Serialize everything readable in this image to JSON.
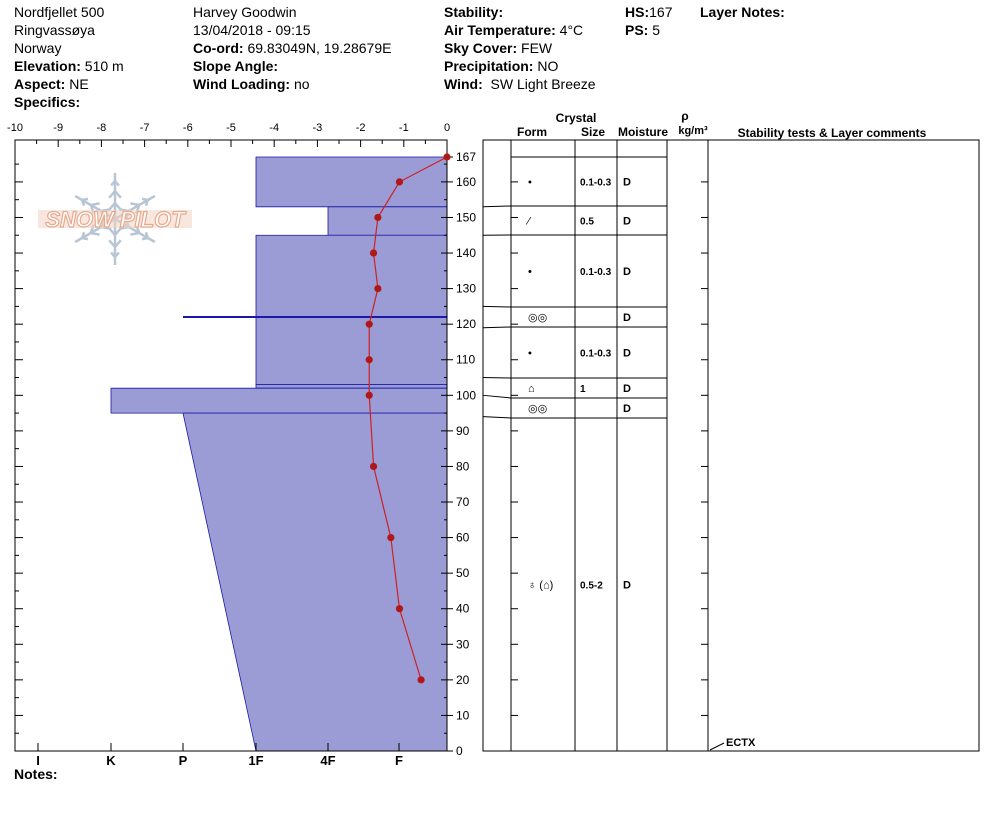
{
  "header": {
    "location": "Nordfjellet 500",
    "area": "Ringvassøya",
    "country": "Norway",
    "elevation_label": "Elevation:",
    "elevation": "510 m",
    "aspect_label": "Aspect:",
    "aspect": "NE",
    "specifics_label": "Specifics:",
    "observer": "Harvey Goodwin",
    "datetime": "13/04/2018 - 09:15",
    "coord_label": "Co-ord:",
    "coord": "69.83049N, 19.28679E",
    "slope_label": "Slope Angle:",
    "wind_loading_label": "Wind Loading:",
    "wind_loading": "no",
    "stability_label": "Stability:",
    "air_temp_label": "Air Temperature:",
    "air_temp": "4°C",
    "sky_label": "Sky Cover:",
    "sky": "FEW",
    "precip_label": "Precipitation:",
    "precip": "NO",
    "wind_label": "Wind:",
    "wind": "SW Light Breeze",
    "hs_label": "HS:",
    "hs": "167",
    "ps_label": "PS:",
    "ps": "5",
    "layer_notes_label": "Layer Notes:"
  },
  "notes_label": "Notes:",
  "logo_text": "SNOW PILOT",
  "columns": {
    "crystal": "Crystal",
    "form": "Form",
    "size": "Size",
    "moisture": "Moisture",
    "rho": "ρ",
    "density_unit": "kg/m³",
    "comments": "Stability tests & Layer comments"
  },
  "colors": {
    "layer_fill": "#9b9bd6",
    "layer_edge": "#1a1aa6",
    "temp_line": "#cc2222",
    "temp_point": "#b01818"
  },
  "chart_data": {
    "type": "snow_profile",
    "temperature_axis": {
      "min": -10,
      "max": 0,
      "ticks": [
        -10,
        -9,
        -8,
        -7,
        -6,
        -5,
        -4,
        -3,
        -2,
        -1,
        0
      ]
    },
    "height_axis": {
      "min": 0,
      "max": 170,
      "ticks": [
        0,
        10,
        20,
        30,
        40,
        50,
        60,
        70,
        80,
        90,
        100,
        110,
        120,
        130,
        140,
        150,
        160,
        167
      ]
    },
    "hardness_scale": [
      "I",
      "K",
      "P",
      "1F",
      "4F",
      "F"
    ],
    "temperature_profile": [
      {
        "h": 167,
        "t": 0.0
      },
      {
        "h": 160,
        "t": -1.1
      },
      {
        "h": 150,
        "t": -1.6
      },
      {
        "h": 140,
        "t": -1.7
      },
      {
        "h": 130,
        "t": -1.6
      },
      {
        "h": 120,
        "t": -1.8
      },
      {
        "h": 110,
        "t": -1.8
      },
      {
        "h": 100,
        "t": -1.8
      },
      {
        "h": 80,
        "t": -1.7
      },
      {
        "h": 60,
        "t": -1.3
      },
      {
        "h": 40,
        "t": -1.1
      },
      {
        "h": 20,
        "t": -0.6
      }
    ],
    "hardness_layers": [
      {
        "top": 167,
        "bottom": 153,
        "hardness_top": "1F",
        "hardness_bottom": "1F"
      },
      {
        "top": 153,
        "bottom": 145,
        "hardness_top": "4F-",
        "hardness_bottom": "4F-"
      },
      {
        "top": 145,
        "bottom": 103,
        "hardness_top": "1F",
        "hardness_bottom": "1F"
      },
      {
        "top": 103,
        "bottom": 102,
        "hardness_top": "1F",
        "hardness_bottom": "1F"
      },
      {
        "top": 102,
        "bottom": 95,
        "hardness_top": "K+",
        "hardness_bottom": "K+"
      },
      {
        "top": 95,
        "bottom": 0,
        "hardness_top": "P",
        "hardness_bottom": "1F"
      }
    ],
    "thin_layers": [
      {
        "h": 122,
        "hardness": "P"
      }
    ],
    "layers": [
      {
        "top": 167,
        "bottom": 153,
        "form": "•",
        "size": "0.1-0.3",
        "moisture": "D"
      },
      {
        "top": 153,
        "bottom": 145,
        "form": "⁄",
        "size": "0.5",
        "moisture": "D"
      },
      {
        "top": 145,
        "bottom": 125,
        "form": "•",
        "size": "0.1-0.3",
        "moisture": "D"
      },
      {
        "top": 125,
        "bottom": 119,
        "form": "◎◎",
        "size": "",
        "moisture": "D"
      },
      {
        "top": 119,
        "bottom": 105,
        "form": "•",
        "size": "0.1-0.3",
        "moisture": "D"
      },
      {
        "top": 105,
        "bottom": 100,
        "form": "⌂",
        "size": "1",
        "moisture": "D"
      },
      {
        "top": 100,
        "bottom": 94,
        "form": "◎◎",
        "size": "",
        "moisture": "D"
      },
      {
        "top": 94,
        "bottom": 0,
        "form": "♁ (⌂)",
        "size": "0.5-2",
        "moisture": "D"
      }
    ],
    "stability_tests": [
      {
        "h": 0,
        "label": "ECTX"
      }
    ]
  }
}
